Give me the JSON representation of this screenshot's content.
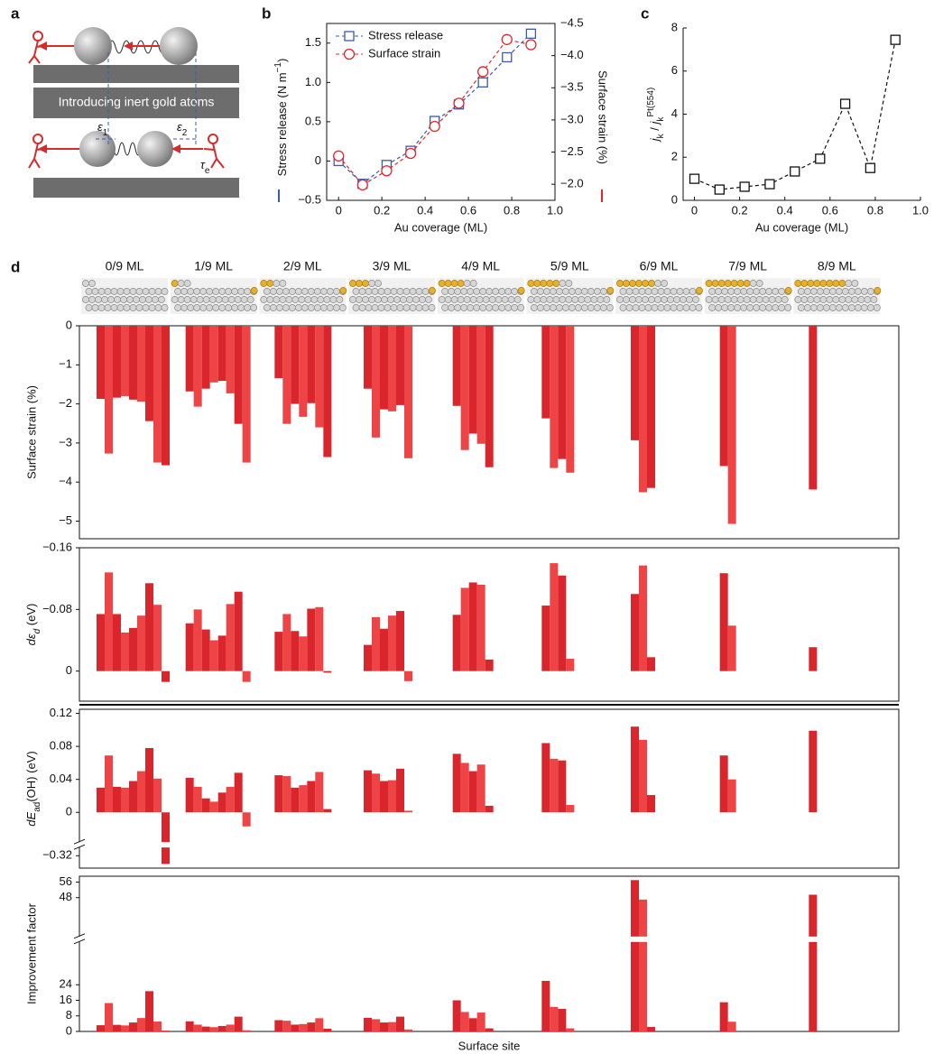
{
  "panel_labels": [
    "a",
    "b",
    "c",
    "d"
  ],
  "diagram": {
    "banner": "Introducing inert gold atoms",
    "eps1": [
      {
        "text": "ε",
        "style": "italic"
      },
      {
        "text": "1",
        "shift": "sub"
      }
    ],
    "eps2": [
      {
        "text": "ε",
        "style": "italic"
      },
      {
        "text": "2",
        "shift": "sub"
      }
    ],
    "tau": [
      {
        "text": "τ",
        "style": "italic"
      },
      {
        "text": "e",
        "shift": "sub"
      }
    ]
  },
  "chart_data": [
    {
      "type": "line",
      "xlabel": "Au coverage (ML)",
      "ylabel": [
        {
          "text": "Stress release (N m"
        },
        {
          "text": "−1",
          "shift": "super"
        },
        {
          "text": ")"
        }
      ],
      "y2label": "Surface strain (%)",
      "x": [
        0,
        0.111,
        0.222,
        0.333,
        0.444,
        0.556,
        0.667,
        0.778,
        0.889
      ],
      "series": [
        {
          "name": "Stress release",
          "color": "#3a5ba8",
          "marker": "square",
          "values": [
            0.0,
            -0.29,
            -0.05,
            0.13,
            0.51,
            0.72,
            1.0,
            1.32,
            1.62
          ]
        },
        {
          "name": "Surface strain",
          "color": "#e3262b",
          "marker": "circle",
          "axis": "y2",
          "values": [
            -2.44,
            -1.99,
            -2.21,
            -2.48,
            -2.9,
            -3.26,
            -3.75,
            -4.25,
            -4.17
          ]
        }
      ],
      "xlim": [
        -0.055,
        1.0
      ],
      "xticks": [
        0,
        0.2,
        0.4,
        0.6,
        0.8,
        {
          "value": 1,
          "label": "1.0"
        }
      ],
      "ylim": [
        -0.5,
        1.75
      ],
      "yticks": [
        {
          "value": -0.5,
          "label": "−0.5"
        },
        0,
        0.5,
        {
          "value": 1,
          "label": "1.0"
        },
        1.5
      ],
      "y2lim": [
        -1.75,
        -4.5
      ],
      "y2ticks": [
        {
          "value": -2,
          "label": "−2.0"
        },
        {
          "value": -2.5,
          "label": "−2.5"
        },
        {
          "value": -3,
          "label": "−3.0"
        },
        {
          "value": -3.5,
          "label": "−3.5"
        },
        {
          "value": -4,
          "label": "−4.0"
        },
        {
          "value": -4.5,
          "label": "−4.5"
        }
      ],
      "line_style": "dashed",
      "legend": "top-left"
    },
    {
      "type": "line",
      "xlabel": "Au coverage (ML)",
      "ylabel": [
        {
          "text": "j",
          "style": "italic"
        },
        {
          "text": "k",
          "shift": "sub"
        },
        {
          "text": " / "
        },
        {
          "text": "j",
          "style": "italic"
        },
        {
          "text": "k",
          "shift": "sub"
        },
        {
          "text": "Pt(554)",
          "shift": "super"
        }
      ],
      "x": [
        0,
        0.111,
        0.222,
        0.333,
        0.444,
        0.556,
        0.667,
        0.778,
        0.889
      ],
      "values": [
        1.0,
        0.5,
        0.63,
        0.75,
        1.34,
        1.93,
        4.48,
        1.5,
        7.45
      ],
      "color": "#111111",
      "marker": "square",
      "xlim": [
        -0.05,
        1.0
      ],
      "xticks": [
        0,
        0.2,
        0.4,
        0.6,
        0.8,
        {
          "value": 1,
          "label": "1.0"
        }
      ],
      "ylim": [
        0,
        8
      ],
      "yticks": [
        0,
        2,
        4,
        6,
        8
      ],
      "line_style": "dashed"
    },
    {
      "type": "grouped-bar",
      "ylabel": "Surface strain (%)",
      "categories": [
        "0/9 ML",
        "1/9 ML",
        "2/9 ML",
        "3/9 ML",
        "4/9 ML",
        "5/9 ML",
        "6/9 ML",
        "7/9 ML",
        "8/9 ML"
      ],
      "values": [
        [
          -1.87,
          -3.27,
          -1.84,
          -1.8,
          -1.89,
          -1.94,
          -2.44,
          -3.5,
          -3.57
        ],
        [
          -1.68,
          -2.07,
          -1.61,
          -1.45,
          -1.41,
          -1.73,
          -2.51,
          -3.5
        ],
        [
          -1.34,
          -2.51,
          -2.0,
          -2.33,
          -1.98,
          -2.6,
          -3.36
        ],
        [
          -1.61,
          -2.86,
          -2.14,
          -2.19,
          -2.03,
          -3.39
        ],
        [
          -2.05,
          -3.18,
          -2.76,
          -3.02,
          -3.62
        ],
        [
          -2.37,
          -3.64,
          -3.41,
          -3.76
        ],
        [
          -2.93,
          -4.26,
          -4.15
        ],
        [
          -3.59,
          -5.07
        ],
        [
          -4.19
        ]
      ],
      "colors": [
        "#d8262c",
        "#ef4446"
      ],
      "ylim": [
        -5.45,
        0
      ],
      "yticks": [
        0,
        {
          "value": -1,
          "label": "−1"
        },
        {
          "value": -2,
          "label": "−2"
        },
        {
          "value": -3,
          "label": "−3"
        },
        {
          "value": -4,
          "label": "−4"
        },
        {
          "value": -5,
          "label": "−5"
        }
      ]
    },
    {
      "type": "grouped-bar",
      "ylabel": [
        {
          "text": "dε",
          "style": "italic"
        },
        {
          "text": "d",
          "shift": "sub",
          "style": "italic"
        },
        {
          "text": " (eV)"
        }
      ],
      "values": [
        [
          -0.074,
          -0.128,
          -0.074,
          -0.05,
          -0.056,
          -0.072,
          -0.114,
          -0.086,
          0.014
        ],
        [
          -0.062,
          -0.08,
          -0.054,
          -0.04,
          -0.046,
          -0.087,
          -0.103,
          0.014
        ],
        [
          -0.051,
          -0.074,
          -0.052,
          -0.045,
          -0.081,
          -0.083,
          0.002
        ],
        [
          -0.034,
          -0.07,
          -0.055,
          -0.072,
          -0.078,
          0.013
        ],
        [
          -0.073,
          -0.108,
          -0.115,
          -0.112,
          -0.015
        ],
        [
          -0.085,
          -0.14,
          -0.124,
          -0.016
        ],
        [
          -0.1,
          -0.137,
          -0.018
        ],
        [
          -0.127,
          -0.059
        ],
        [
          -0.031
        ]
      ],
      "colors": [
        "#d8262c",
        "#ef4446"
      ],
      "ylim": [
        0.039,
        -0.16
      ],
      "yticks": [
        {
          "value": -0.16,
          "label": "−0.16"
        },
        {
          "value": -0.08,
          "label": "−0.08"
        },
        0
      ]
    },
    {
      "type": "grouped-bar",
      "ylabel": [
        {
          "text": "dE",
          "style": "italic"
        },
        {
          "text": "ad",
          "shift": "sub"
        },
        {
          "text": "(OH) (eV)"
        }
      ],
      "values": [
        [
          0.03,
          0.069,
          0.031,
          0.03,
          0.038,
          0.05,
          0.078,
          0.041,
          -0.33
        ],
        [
          0.042,
          0.031,
          0.017,
          0.013,
          0.024,
          0.031,
          0.048,
          -0.017
        ],
        [
          0.045,
          0.044,
          0.03,
          0.033,
          0.038,
          0.049,
          0.004
        ],
        [
          0.051,
          0.047,
          0.038,
          0.039,
          0.053,
          0.002
        ],
        [
          0.071,
          0.06,
          0.05,
          0.058,
          0.008
        ],
        [
          0.084,
          0.065,
          0.063,
          0.009
        ],
        [
          0.104,
          0.088,
          0.021
        ],
        [
          0.069,
          0.04
        ],
        [
          0.099
        ]
      ],
      "colors": [
        "#d8262c",
        "#ef4446"
      ],
      "ylim": [
        -0.335,
        0.125
      ],
      "ybreak": [
        -0.036,
        -0.31
      ],
      "yticks": [
        {
          "value": -0.32,
          "label": "−0.32"
        },
        0,
        0.04,
        0.08,
        0.12
      ]
    },
    {
      "type": "grouped-bar",
      "ylabel": "Improvement factor",
      "xlabel": "Surface site",
      "values": [
        [
          3.2,
          14.6,
          3.4,
          3.1,
          4.6,
          6.9,
          20.7,
          5.1,
          0.4
        ],
        [
          5.2,
          3.5,
          2.5,
          2.2,
          2.8,
          3.5,
          7.6,
          0.6
        ],
        [
          5.8,
          5.5,
          3.5,
          3.8,
          4.6,
          6.8,
          1.4
        ],
        [
          7.0,
          6.3,
          4.6,
          4.8,
          7.6,
          1.0
        ],
        [
          16.0,
          10.0,
          6.8,
          9.7,
          1.6
        ],
        [
          26.0,
          12.6,
          11.6,
          1.6
        ],
        [
          57,
          47,
          2.3
        ],
        [
          15.0,
          5.0
        ],
        [
          49.5
        ]
      ],
      "colors": [
        "#d8262c",
        "#ef4446"
      ],
      "ylim": [
        0,
        59
      ],
      "ybreak": [
        28,
        46
      ],
      "yticks": [
        0,
        8,
        16,
        24,
        48,
        56
      ]
    }
  ]
}
